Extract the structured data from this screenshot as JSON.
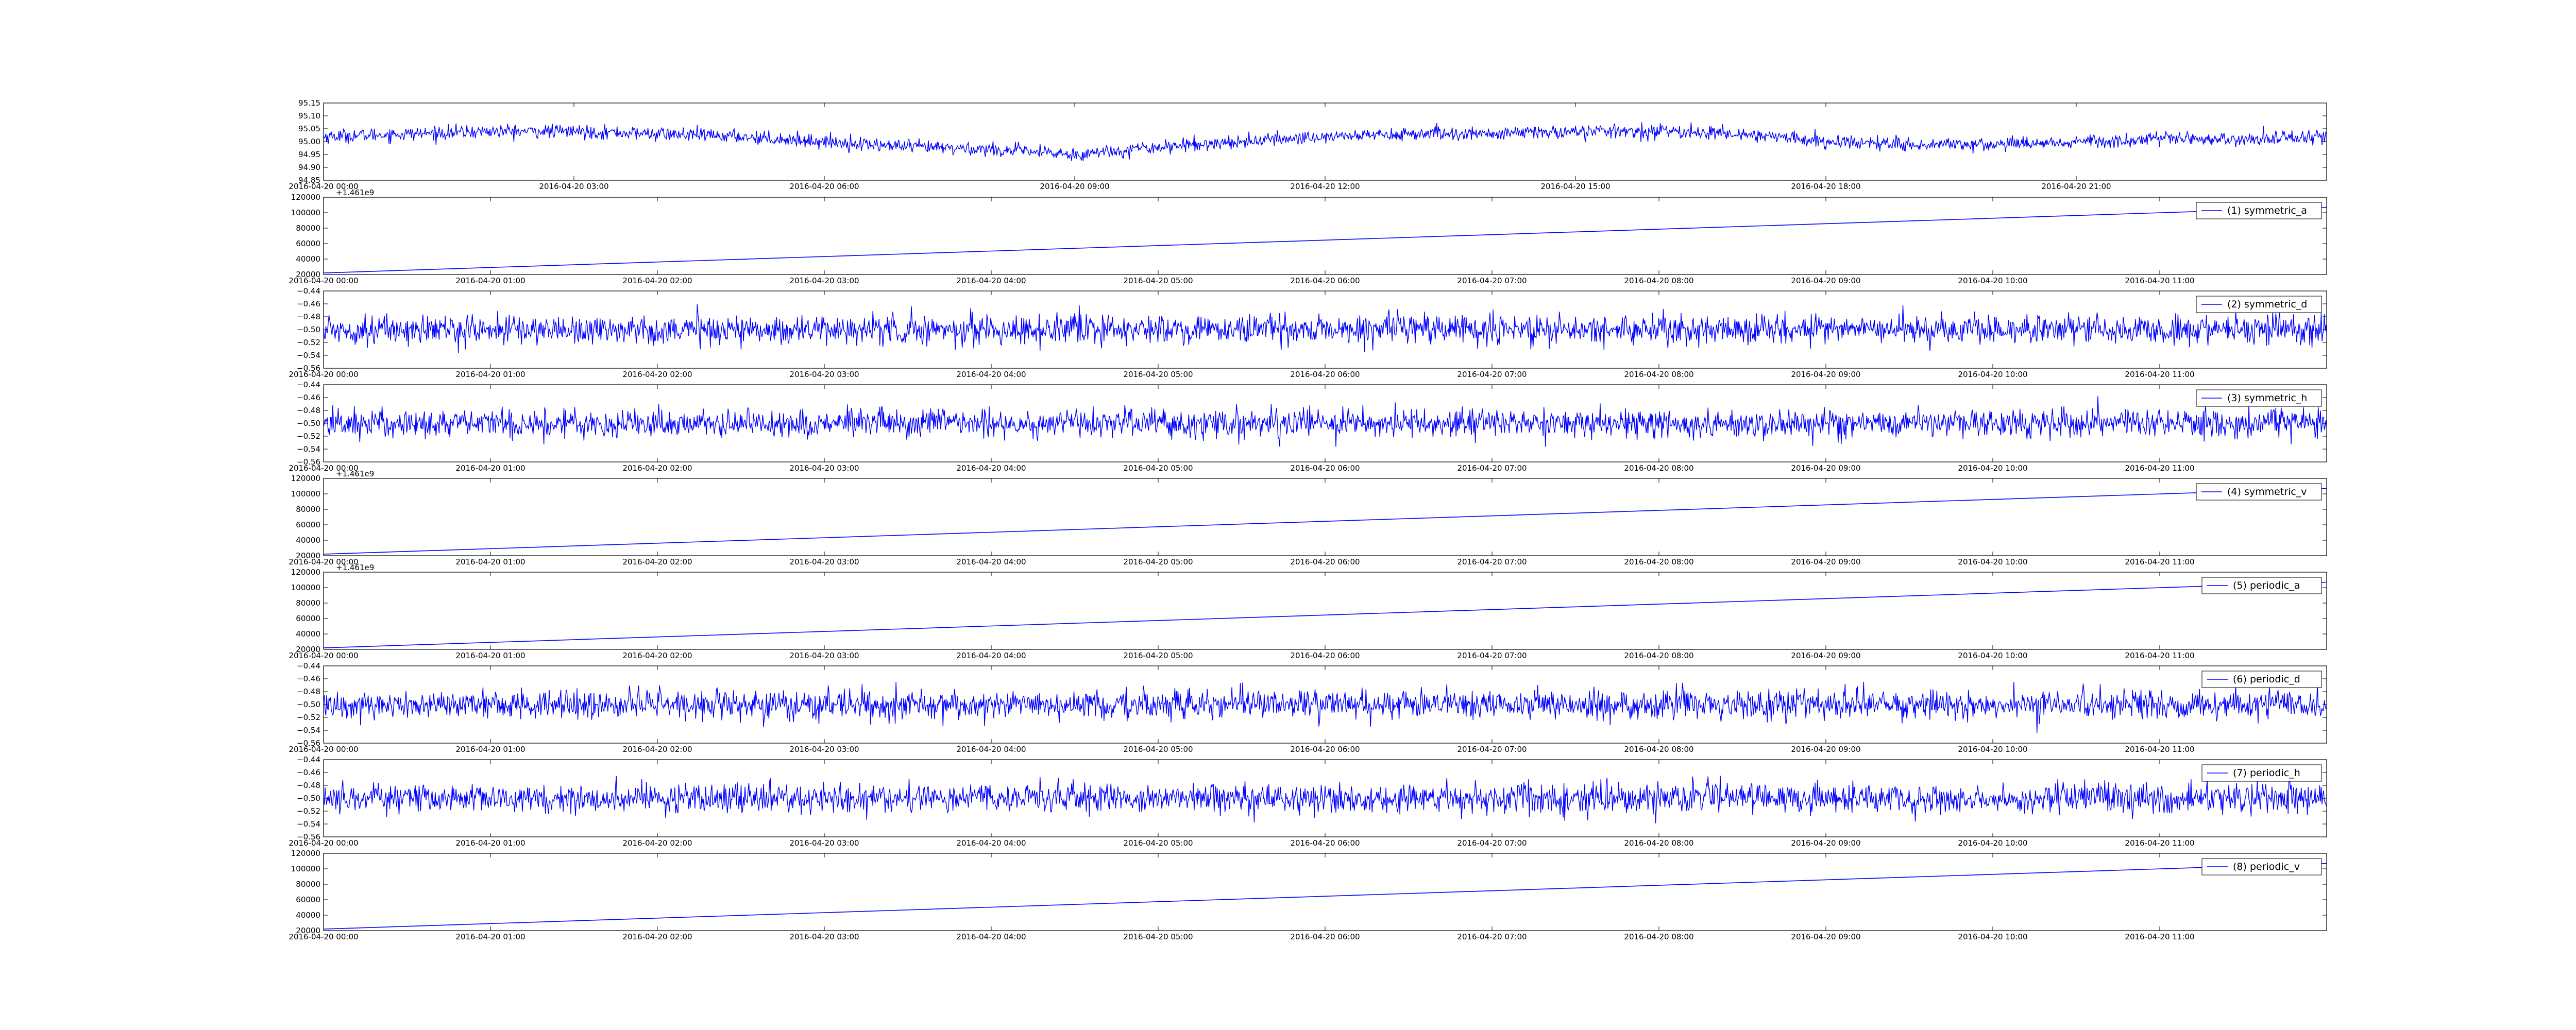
{
  "figure": {
    "background": "#ffffff"
  },
  "chart_data": [
    {
      "type": "line",
      "title": "",
      "xlabel": "",
      "ylabel": "",
      "legend": null,
      "color": "#0000ff",
      "ylim": [
        94.85,
        95.15
      ],
      "yticks": [
        "95.15",
        "95.10",
        "95.05",
        "95.00",
        "94.95",
        "94.90",
        "94.85"
      ],
      "xticks": [
        "2016-04-20 00:00",
        "2016-04-20 03:00",
        "2016-04-20 06:00",
        "2016-04-20 09:00",
        "2016-04-20 12:00",
        "2016-04-20 15:00",
        "2016-04-20 18:00",
        "2016-04-20 21:00"
      ],
      "y_offset_text": "",
      "x": [
        "2016-04-20 00:00",
        "2016-04-20 01:00",
        "2016-04-20 02:00",
        "2016-04-20 03:00",
        "2016-04-20 04:00",
        "2016-04-20 05:00",
        "2016-04-20 06:00",
        "2016-04-20 07:00",
        "2016-04-20 08:00",
        "2016-04-20 09:00",
        "2016-04-20 10:00",
        "2016-04-20 11:00",
        "2016-04-20 12:00",
        "2016-04-20 13:00",
        "2016-04-20 14:00",
        "2016-04-20 15:00",
        "2016-04-20 16:00",
        "2016-04-20 17:00",
        "2016-04-20 18:00",
        "2016-04-20 19:00",
        "2016-04-20 20:00",
        "2016-04-20 21:00",
        "2016-04-20 22:00",
        "2016-04-20 23:00",
        "2016-04-21 00:00"
      ],
      "values": [
        95.02,
        95.03,
        95.04,
        95.04,
        95.03,
        95.02,
        95.0,
        94.98,
        94.97,
        94.95,
        94.98,
        95.0,
        95.02,
        95.03,
        95.03,
        95.04,
        95.04,
        95.03,
        95.0,
        94.99,
        94.99,
        95.0,
        95.01,
        95.01,
        95.02
      ],
      "noise_amplitude": 0.035
    },
    {
      "type": "line",
      "legend": "(1) symmetric_a",
      "color": "#0000ff",
      "ylim": [
        20000,
        120000
      ],
      "yticks": [
        "120000",
        "100000",
        "80000",
        "60000",
        "40000",
        "20000"
      ],
      "xticks": [
        "2016-04-20 00:00",
        "2016-04-20 01:00",
        "2016-04-20 02:00",
        "2016-04-20 03:00",
        "2016-04-20 04:00",
        "2016-04-20 05:00",
        "2016-04-20 06:00",
        "2016-04-20 07:00",
        "2016-04-20 08:00",
        "2016-04-20 09:00",
        "2016-04-20 10:00",
        "2016-04-20 11:00"
      ],
      "y_offset_text": "+1.461e9",
      "x": [
        "2016-04-20 00:00",
        "2016-04-20 12:00"
      ],
      "values": [
        22000,
        107000
      ],
      "noise_amplitude": 0
    },
    {
      "type": "line",
      "legend": "(2) symmetric_d",
      "color": "#0000ff",
      "ylim": [
        -0.56,
        -0.44
      ],
      "yticks": [
        "−0.44",
        "−0.46",
        "−0.48",
        "−0.50",
        "−0.52",
        "−0.54",
        "−0.56"
      ],
      "xticks": [
        "2016-04-20 00:00",
        "2016-04-20 01:00",
        "2016-04-20 02:00",
        "2016-04-20 03:00",
        "2016-04-20 04:00",
        "2016-04-20 05:00",
        "2016-04-20 06:00",
        "2016-04-20 07:00",
        "2016-04-20 08:00",
        "2016-04-20 09:00",
        "2016-04-20 10:00",
        "2016-04-20 11:00"
      ],
      "y_offset_text": "",
      "x": [
        "2016-04-20 00:00",
        "2016-04-20 12:00"
      ],
      "values": [
        -0.5,
        -0.5
      ],
      "noise_amplitude": 0.03
    },
    {
      "type": "line",
      "legend": "(3) symmetric_h",
      "color": "#0000ff",
      "ylim": [
        -0.56,
        -0.44
      ],
      "yticks": [
        "−0.44",
        "−0.46",
        "−0.48",
        "−0.50",
        "−0.52",
        "−0.54",
        "−0.56"
      ],
      "xticks": [
        "2016-04-20 00:00",
        "2016-04-20 01:00",
        "2016-04-20 02:00",
        "2016-04-20 03:00",
        "2016-04-20 04:00",
        "2016-04-20 05:00",
        "2016-04-20 06:00",
        "2016-04-20 07:00",
        "2016-04-20 08:00",
        "2016-04-20 09:00",
        "2016-04-20 10:00",
        "2016-04-20 11:00"
      ],
      "y_offset_text": "",
      "x": [
        "2016-04-20 00:00",
        "2016-04-20 12:00"
      ],
      "values": [
        -0.5,
        -0.5
      ],
      "noise_amplitude": 0.03
    },
    {
      "type": "line",
      "legend": "(4) symmetric_v",
      "color": "#0000ff",
      "ylim": [
        20000,
        120000
      ],
      "yticks": [
        "120000",
        "100000",
        "80000",
        "60000",
        "40000",
        "20000"
      ],
      "xticks": [
        "2016-04-20 00:00",
        "2016-04-20 01:00",
        "2016-04-20 02:00",
        "2016-04-20 03:00",
        "2016-04-20 04:00",
        "2016-04-20 05:00",
        "2016-04-20 06:00",
        "2016-04-20 07:00",
        "2016-04-20 08:00",
        "2016-04-20 09:00",
        "2016-04-20 10:00",
        "2016-04-20 11:00"
      ],
      "y_offset_text": "+1.461e9",
      "x": [
        "2016-04-20 00:00",
        "2016-04-20 12:00"
      ],
      "values": [
        22000,
        107000
      ],
      "noise_amplitude": 0
    },
    {
      "type": "line",
      "legend": "(5) periodic_a",
      "color": "#0000ff",
      "ylim": [
        20000,
        120000
      ],
      "yticks": [
        "120000",
        "100000",
        "80000",
        "60000",
        "40000",
        "20000"
      ],
      "xticks": [
        "2016-04-20 00:00",
        "2016-04-20 01:00",
        "2016-04-20 02:00",
        "2016-04-20 03:00",
        "2016-04-20 04:00",
        "2016-04-20 05:00",
        "2016-04-20 06:00",
        "2016-04-20 07:00",
        "2016-04-20 08:00",
        "2016-04-20 09:00",
        "2016-04-20 10:00",
        "2016-04-20 11:00"
      ],
      "y_offset_text": "+1.461e9",
      "x": [
        "2016-04-20 00:00",
        "2016-04-20 12:00"
      ],
      "values": [
        22000,
        107000
      ],
      "noise_amplitude": 0
    },
    {
      "type": "line",
      "legend": "(6) periodic_d",
      "color": "#0000ff",
      "ylim": [
        -0.56,
        -0.44
      ],
      "yticks": [
        "−0.44",
        "−0.46",
        "−0.48",
        "−0.50",
        "−0.52",
        "−0.54",
        "−0.56"
      ],
      "xticks": [
        "2016-04-20 00:00",
        "2016-04-20 01:00",
        "2016-04-20 02:00",
        "2016-04-20 03:00",
        "2016-04-20 04:00",
        "2016-04-20 05:00",
        "2016-04-20 06:00",
        "2016-04-20 07:00",
        "2016-04-20 08:00",
        "2016-04-20 09:00",
        "2016-04-20 10:00",
        "2016-04-20 11:00"
      ],
      "y_offset_text": "",
      "x": [
        "2016-04-20 00:00",
        "2016-04-20 12:00"
      ],
      "values": [
        -0.5,
        -0.5
      ],
      "noise_amplitude": 0.03
    },
    {
      "type": "line",
      "legend": "(7) periodic_h",
      "color": "#0000ff",
      "ylim": [
        -0.56,
        -0.44
      ],
      "yticks": [
        "−0.44",
        "−0.46",
        "−0.48",
        "−0.50",
        "−0.52",
        "−0.54",
        "−0.56"
      ],
      "xticks": [
        "2016-04-20 00:00",
        "2016-04-20 01:00",
        "2016-04-20 02:00",
        "2016-04-20 03:00",
        "2016-04-20 04:00",
        "2016-04-20 05:00",
        "2016-04-20 06:00",
        "2016-04-20 07:00",
        "2016-04-20 08:00",
        "2016-04-20 09:00",
        "2016-04-20 10:00",
        "2016-04-20 11:00"
      ],
      "y_offset_text": "",
      "x": [
        "2016-04-20 00:00",
        "2016-04-20 12:00"
      ],
      "values": [
        -0.5,
        -0.5
      ],
      "noise_amplitude": 0.03
    },
    {
      "type": "line",
      "legend": "(8) periodic_v",
      "color": "#0000ff",
      "ylim": [
        20000,
        120000
      ],
      "yticks": [
        "120000",
        "100000",
        "80000",
        "60000",
        "40000",
        "20000"
      ],
      "xticks": [
        "2016-04-20 00:00",
        "2016-04-20 01:00",
        "2016-04-20 02:00",
        "2016-04-20 03:00",
        "2016-04-20 04:00",
        "2016-04-20 05:00",
        "2016-04-20 06:00",
        "2016-04-20 07:00",
        "2016-04-20 08:00",
        "2016-04-20 09:00",
        "2016-04-20 10:00",
        "2016-04-20 11:00"
      ],
      "y_offset_text": "",
      "x": [
        "2016-04-20 00:00",
        "2016-04-20 12:00"
      ],
      "values": [
        22000,
        107000
      ],
      "noise_amplitude": 0
    }
  ]
}
